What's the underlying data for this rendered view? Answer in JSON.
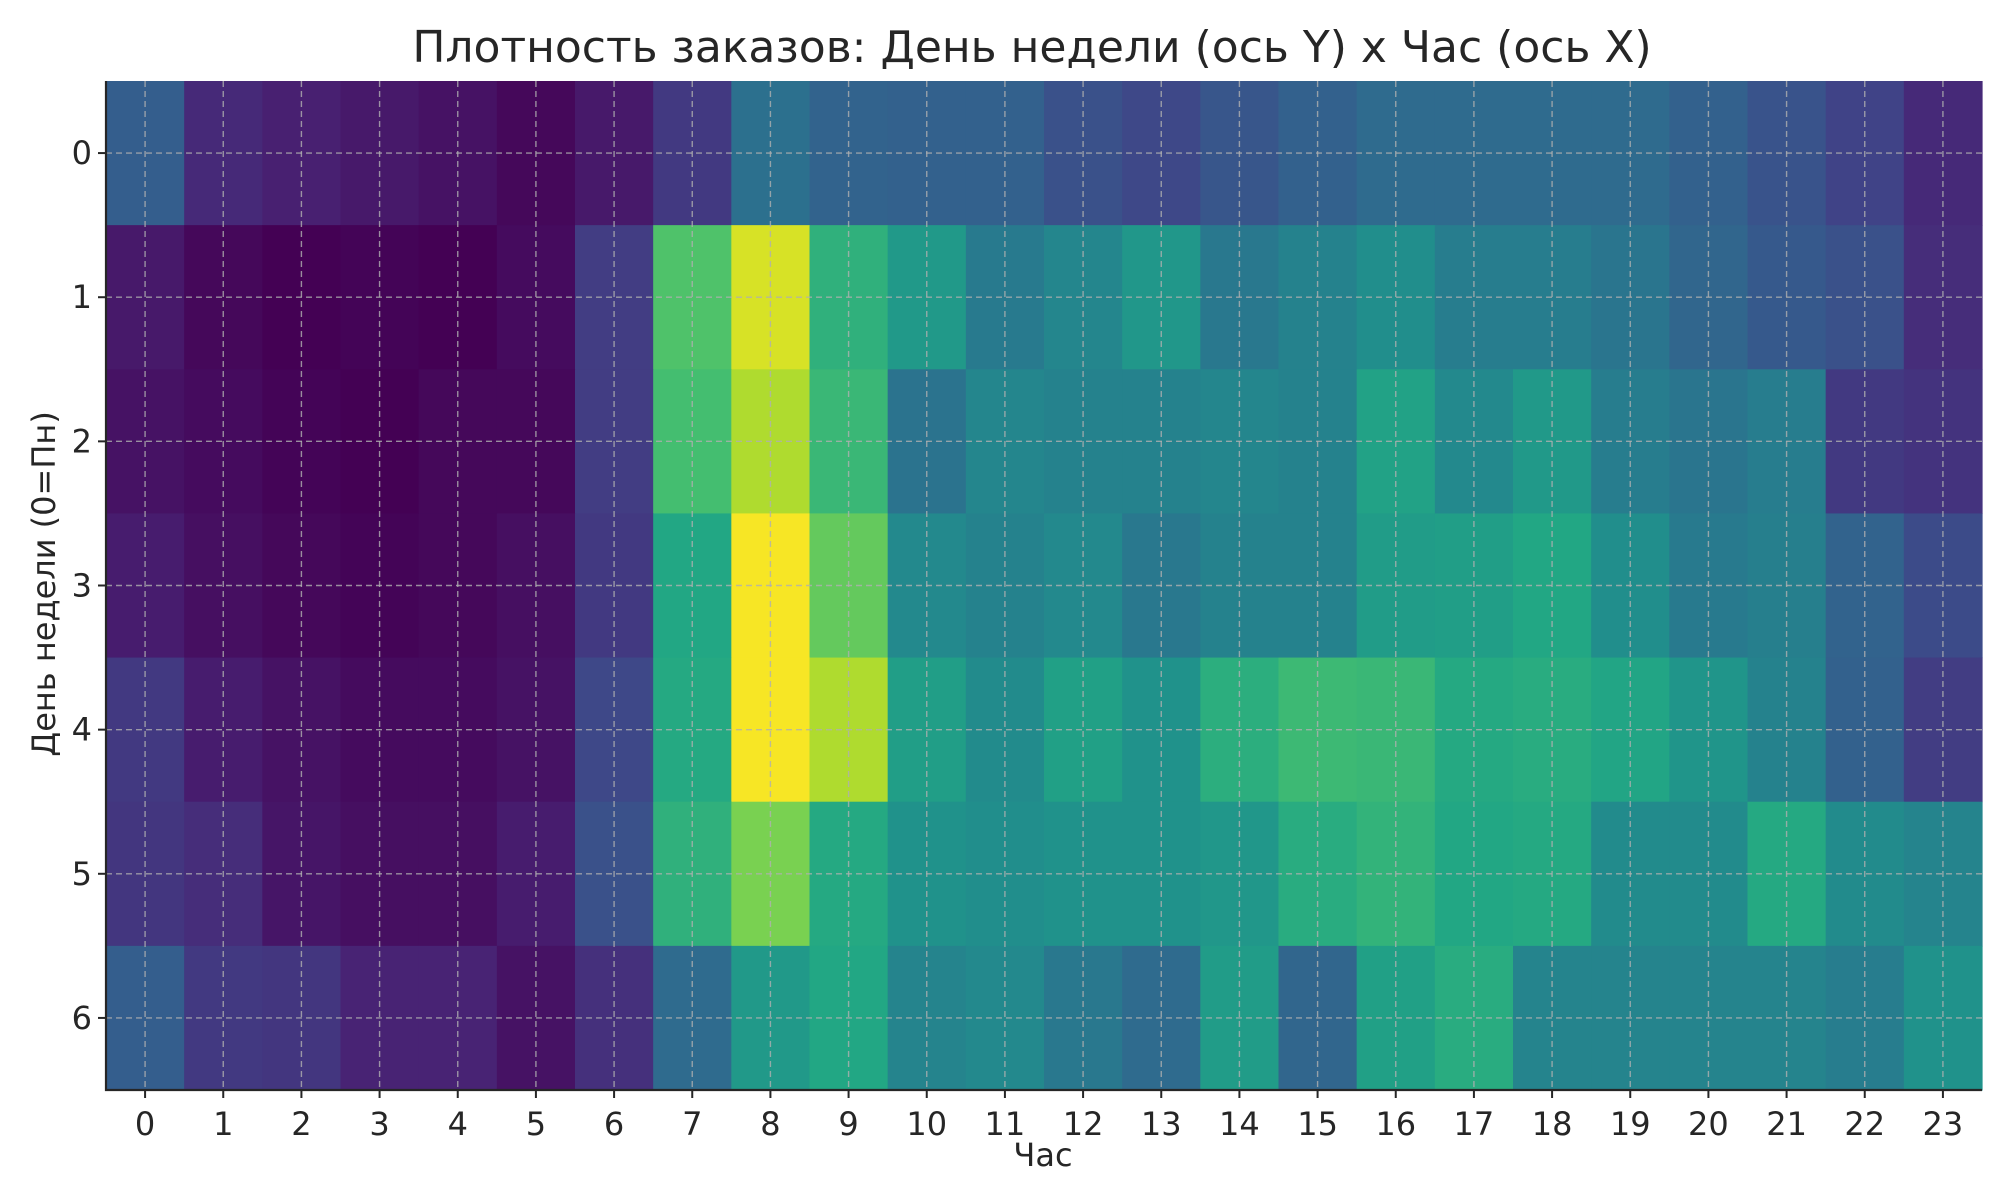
{
  "chart_data": {
    "type": "heatmap",
    "title": "Плотность заказов: День недели (ось Y) x Час (ось X)",
    "xlabel": "Час",
    "ylabel": "День недели (0=Пн)",
    "x_categories": [
      "0",
      "1",
      "2",
      "3",
      "4",
      "5",
      "6",
      "7",
      "8",
      "9",
      "10",
      "11",
      "12",
      "13",
      "14",
      "15",
      "16",
      "17",
      "18",
      "19",
      "20",
      "21",
      "22",
      "23"
    ],
    "y_categories": [
      "0",
      "1",
      "2",
      "3",
      "4",
      "5",
      "6"
    ],
    "grid": true,
    "colormap": "viridis",
    "value_range": [
      0,
      1
    ],
    "values": [
      [
        0.3,
        0.12,
        0.09,
        0.07,
        0.05,
        0.02,
        0.07,
        0.17,
        0.37,
        0.32,
        0.31,
        0.31,
        0.25,
        0.22,
        0.27,
        0.31,
        0.35,
        0.35,
        0.35,
        0.35,
        0.31,
        0.26,
        0.2,
        0.12
      ],
      [
        0.07,
        0.02,
        0.0,
        0.01,
        0.0,
        0.03,
        0.18,
        0.72,
        0.94,
        0.64,
        0.54,
        0.41,
        0.46,
        0.53,
        0.4,
        0.44,
        0.49,
        0.42,
        0.42,
        0.39,
        0.33,
        0.28,
        0.25,
        0.13
      ],
      [
        0.05,
        0.03,
        0.01,
        0.0,
        0.02,
        0.02,
        0.18,
        0.7,
        0.88,
        0.67,
        0.38,
        0.46,
        0.44,
        0.44,
        0.46,
        0.44,
        0.58,
        0.47,
        0.54,
        0.42,
        0.39,
        0.42,
        0.17,
        0.15
      ],
      [
        0.08,
        0.04,
        0.02,
        0.01,
        0.02,
        0.04,
        0.17,
        0.6,
        0.99,
        0.76,
        0.47,
        0.44,
        0.47,
        0.4,
        0.44,
        0.44,
        0.55,
        0.56,
        0.6,
        0.49,
        0.41,
        0.43,
        0.32,
        0.23
      ],
      [
        0.17,
        0.08,
        0.05,
        0.03,
        0.03,
        0.05,
        0.22,
        0.61,
        0.99,
        0.88,
        0.56,
        0.48,
        0.57,
        0.51,
        0.63,
        0.68,
        0.67,
        0.61,
        0.62,
        0.59,
        0.52,
        0.44,
        0.31,
        0.18
      ],
      [
        0.16,
        0.13,
        0.06,
        0.04,
        0.04,
        0.08,
        0.25,
        0.64,
        0.8,
        0.61,
        0.51,
        0.49,
        0.51,
        0.51,
        0.53,
        0.62,
        0.65,
        0.6,
        0.61,
        0.48,
        0.48,
        0.61,
        0.48,
        0.45
      ],
      [
        0.3,
        0.17,
        0.16,
        0.1,
        0.1,
        0.05,
        0.14,
        0.35,
        0.54,
        0.6,
        0.45,
        0.47,
        0.4,
        0.35,
        0.55,
        0.33,
        0.57,
        0.62,
        0.45,
        0.45,
        0.45,
        0.45,
        0.42,
        0.51
      ]
    ]
  }
}
